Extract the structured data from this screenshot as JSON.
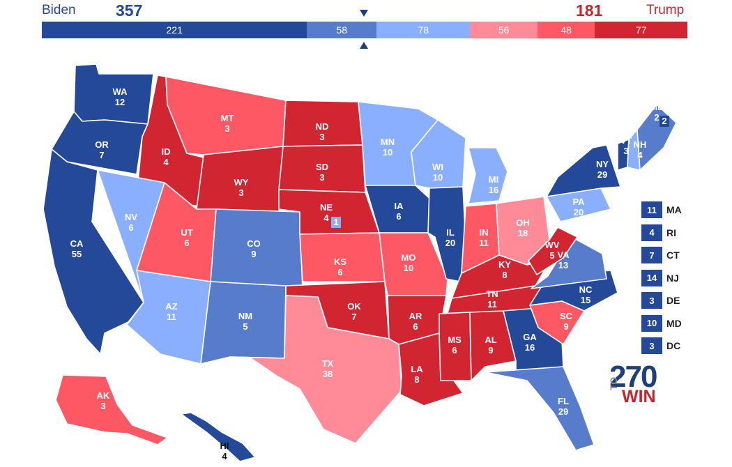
{
  "header": {
    "left_name": "Biden",
    "left_total": "357",
    "right_name": "Trump",
    "right_total": "181"
  },
  "bar": {
    "segments": [
      {
        "value": "221",
        "color": "#244999"
      },
      {
        "value": "58",
        "color": "#577CCC"
      },
      {
        "value": "78",
        "color": "#8AAFFF"
      },
      {
        "value": "56",
        "color": "#FF8B98"
      },
      {
        "value": "48",
        "color": "#FF5865"
      },
      {
        "value": "77",
        "color": "#D22532"
      }
    ],
    "marker_top": "▼",
    "marker_bottom": "▲"
  },
  "colors": {
    "safe_d": "#244999",
    "likely_d": "#577CCC",
    "lean_d": "#8AAFFF",
    "lean_r": "#FF8B98",
    "likely_r": "#FF5865",
    "safe_r": "#D22532"
  },
  "states": [
    {
      "abbr": "WA",
      "ev": "12",
      "color": "#244999"
    },
    {
      "abbr": "OR",
      "ev": "7",
      "color": "#244999"
    },
    {
      "abbr": "CA",
      "ev": "55",
      "color": "#244999"
    },
    {
      "abbr": "ID",
      "ev": "4",
      "color": "#D22532"
    },
    {
      "abbr": "NV",
      "ev": "6",
      "color": "#8AAFFF"
    },
    {
      "abbr": "MT",
      "ev": "3",
      "color": "#FF5865"
    },
    {
      "abbr": "WY",
      "ev": "3",
      "color": "#D22532"
    },
    {
      "abbr": "UT",
      "ev": "6",
      "color": "#FF5865"
    },
    {
      "abbr": "AZ",
      "ev": "11",
      "color": "#8AAFFF"
    },
    {
      "abbr": "CO",
      "ev": "9",
      "color": "#577CCC"
    },
    {
      "abbr": "NM",
      "ev": "5",
      "color": "#577CCC"
    },
    {
      "abbr": "ND",
      "ev": "3",
      "color": "#D22532"
    },
    {
      "abbr": "SD",
      "ev": "3",
      "color": "#D22532"
    },
    {
      "abbr": "NE",
      "ev": "4",
      "color": "#D22532"
    },
    {
      "abbr": "KS",
      "ev": "6",
      "color": "#FF5865"
    },
    {
      "abbr": "OK",
      "ev": "7",
      "color": "#D22532"
    },
    {
      "abbr": "TX",
      "ev": "38",
      "color": "#FF8B98"
    },
    {
      "abbr": "MN",
      "ev": "10",
      "color": "#8AAFFF"
    },
    {
      "abbr": "IA",
      "ev": "6",
      "color": "#244999"
    },
    {
      "abbr": "MO",
      "ev": "10",
      "color": "#FF5865"
    },
    {
      "abbr": "AR",
      "ev": "6",
      "color": "#D22532"
    },
    {
      "abbr": "LA",
      "ev": "8",
      "color": "#D22532"
    },
    {
      "abbr": "WI",
      "ev": "10",
      "color": "#8AAFFF"
    },
    {
      "abbr": "IL",
      "ev": "20",
      "color": "#244999"
    },
    {
      "abbr": "MI",
      "ev": "16",
      "color": "#8AAFFF"
    },
    {
      "abbr": "IN",
      "ev": "11",
      "color": "#FF5865"
    },
    {
      "abbr": "OH",
      "ev": "18",
      "color": "#FF8B98"
    },
    {
      "abbr": "KY",
      "ev": "8",
      "color": "#D22532"
    },
    {
      "abbr": "TN",
      "ev": "11",
      "color": "#D22532"
    },
    {
      "abbr": "MS",
      "ev": "6",
      "color": "#D22532"
    },
    {
      "abbr": "AL",
      "ev": "9",
      "color": "#D22532"
    },
    {
      "abbr": "GA",
      "ev": "16",
      "color": "#244999"
    },
    {
      "abbr": "FL",
      "ev": "29",
      "color": "#577CCC"
    },
    {
      "abbr": "SC",
      "ev": "9",
      "color": "#FF5865"
    },
    {
      "abbr": "NC",
      "ev": "15",
      "color": "#244999"
    },
    {
      "abbr": "VA",
      "ev": "13",
      "color": "#577CCC"
    },
    {
      "abbr": "WV",
      "ev": "5",
      "color": "#D22532"
    },
    {
      "abbr": "PA",
      "ev": "20",
      "color": "#8AAFFF"
    },
    {
      "abbr": "NY",
      "ev": "29",
      "color": "#244999"
    },
    {
      "abbr": "VT",
      "ev": "3",
      "color": "#244999"
    },
    {
      "abbr": "NH",
      "ev": "4",
      "color": "#8AAFFF"
    },
    {
      "abbr": "ME",
      "ev": "2",
      "color": "#577CCC"
    },
    {
      "abbr": "AK",
      "ev": "3",
      "color": "#FF5865"
    },
    {
      "abbr": "HI",
      "ev": "4",
      "color": "#244999"
    }
  ],
  "split_votes": {
    "me_district": "2",
    "ne_district": "1"
  },
  "northeast": [
    {
      "ev": "11",
      "abbr": "MA"
    },
    {
      "ev": "4",
      "abbr": "RI"
    },
    {
      "ev": "7",
      "abbr": "CT"
    },
    {
      "ev": "14",
      "abbr": "NJ"
    },
    {
      "ev": "3",
      "abbr": "DE"
    },
    {
      "ev": "10",
      "abbr": "MD"
    },
    {
      "ev": "3",
      "abbr": "DC"
    }
  ],
  "logo": {
    "number": "270",
    "to": "TO",
    "win": "WIN"
  }
}
